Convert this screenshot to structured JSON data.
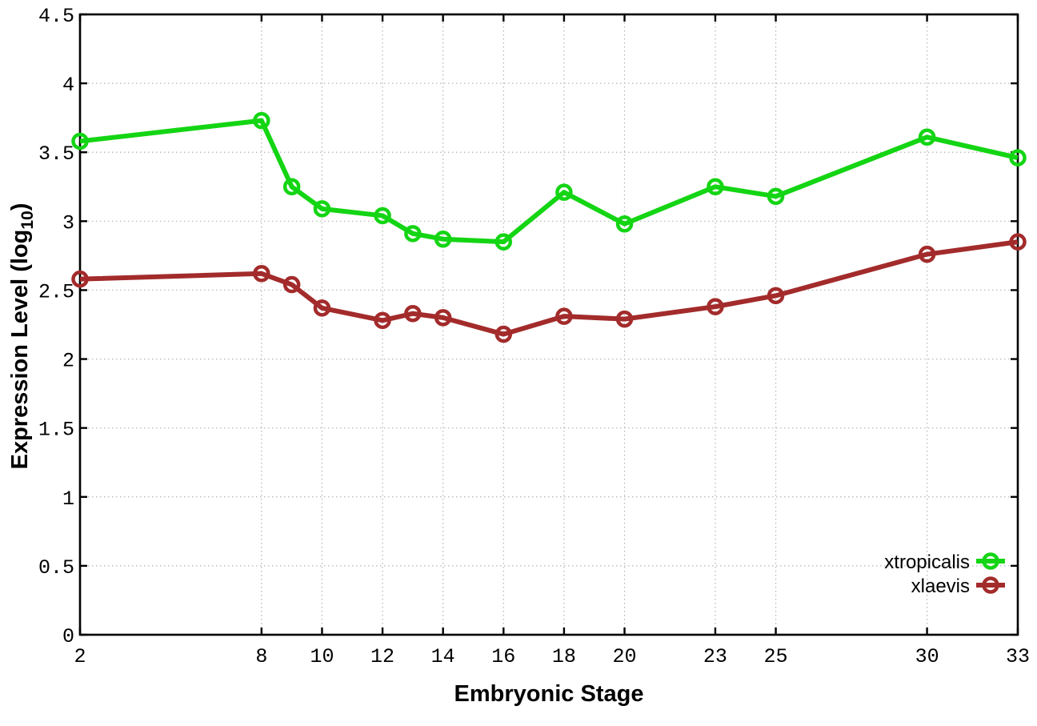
{
  "chart_data": {
    "type": "line",
    "title": "",
    "xlabel": "Embryonic Stage",
    "ylabel": "Expression Level (log10)",
    "ylabel_parts": {
      "pre": "Expression Level (log",
      "sub": "10",
      "post": ")"
    },
    "xlim": [
      2,
      33
    ],
    "ylim": [
      0,
      4.5
    ],
    "x_ticks": [
      2,
      8,
      10,
      12,
      14,
      16,
      18,
      20,
      23,
      25,
      30,
      33
    ],
    "y_ticks": [
      0,
      0.5,
      1,
      1.5,
      2,
      2.5,
      3,
      3.5,
      4,
      4.5
    ],
    "grid": true,
    "legend_position": "bottom-right",
    "background_color": "#ffffff",
    "series": [
      {
        "name": "xtropicalis",
        "color": "#14d514",
        "marker": "open-circle",
        "x": [
          2,
          8,
          9,
          10,
          12,
          13,
          14,
          16,
          18,
          20,
          23,
          25,
          30,
          33
        ],
        "values": [
          3.58,
          3.73,
          3.25,
          3.09,
          3.04,
          2.91,
          2.87,
          2.85,
          3.21,
          2.98,
          3.25,
          3.18,
          3.61,
          3.46
        ]
      },
      {
        "name": "xlaevis",
        "color": "#a32b2b",
        "marker": "open-circle",
        "x": [
          2,
          8,
          9,
          10,
          12,
          13,
          14,
          16,
          18,
          20,
          23,
          25,
          30,
          33
        ],
        "values": [
          2.58,
          2.62,
          2.54,
          2.37,
          2.28,
          2.33,
          2.3,
          2.18,
          2.31,
          2.29,
          2.38,
          2.46,
          2.76,
          2.85
        ]
      }
    ]
  }
}
